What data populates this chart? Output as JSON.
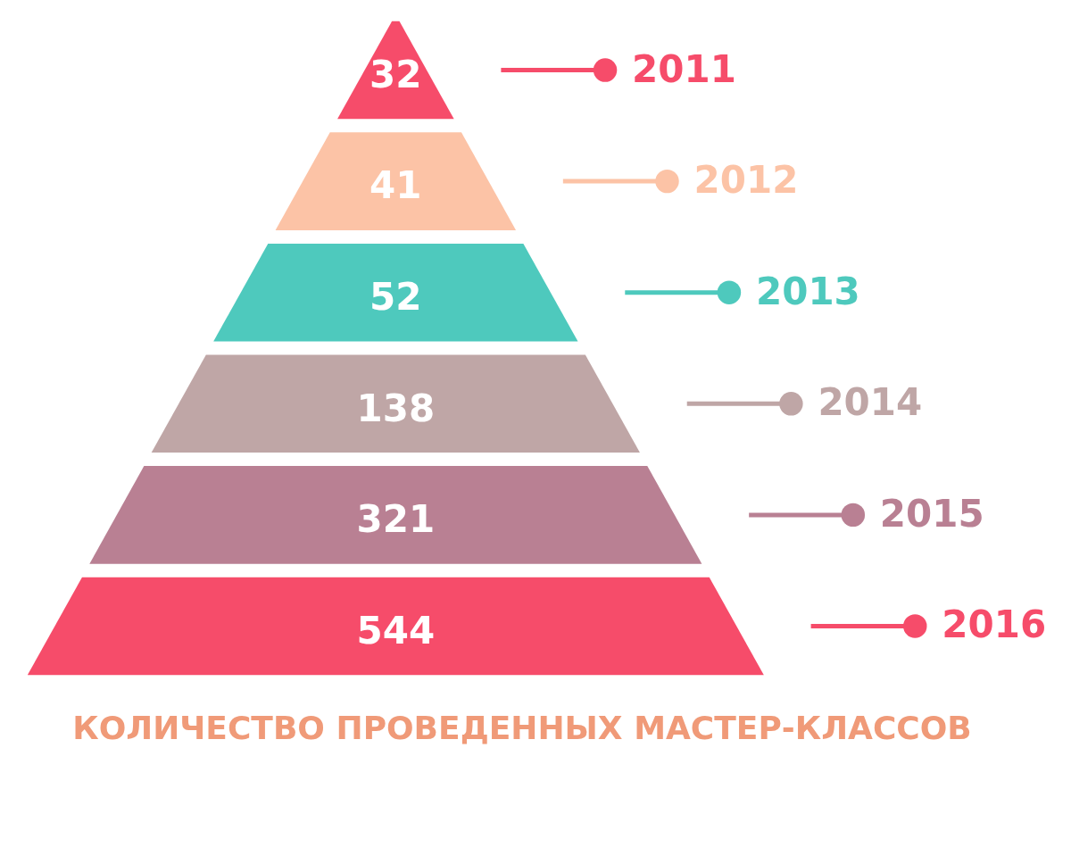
{
  "chart_data": {
    "type": "other",
    "title": "КОЛИЧЕСТВО ПРОВЕДЕННЫХ МАСТЕР-КЛАССОВ",
    "categories": [
      "2011",
      "2012",
      "2013",
      "2014",
      "2015",
      "2016"
    ],
    "values": [
      32,
      41,
      52,
      138,
      321,
      544
    ],
    "colors": [
      "#f64c6a",
      "#fcc3a6",
      "#4ec9bd",
      "#bfa6a6",
      "#b98093",
      "#f64c6a"
    ],
    "data_labels": true
  }
}
